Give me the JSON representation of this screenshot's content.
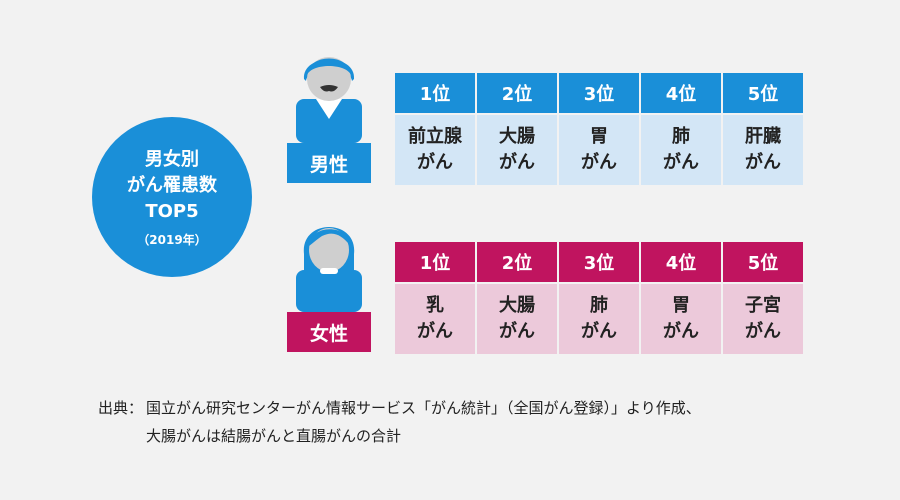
{
  "badge": {
    "line1": "男女別",
    "line2": "がん罹患数",
    "line3": "TOP5",
    "year": "（2019年）"
  },
  "male": {
    "label": "男性",
    "ranks": [
      {
        "rank": "1位",
        "site": "前立腺",
        "suffix": "がん"
      },
      {
        "rank": "2位",
        "site": "大腸",
        "suffix": "がん"
      },
      {
        "rank": "3位",
        "site": "胃",
        "suffix": "がん"
      },
      {
        "rank": "4位",
        "site": "肺",
        "suffix": "がん"
      },
      {
        "rank": "5位",
        "site": "肝臓",
        "suffix": "がん"
      }
    ]
  },
  "female": {
    "label": "女性",
    "ranks": [
      {
        "rank": "1位",
        "site": "乳",
        "suffix": "がん"
      },
      {
        "rank": "2位",
        "site": "大腸",
        "suffix": "がん"
      },
      {
        "rank": "3位",
        "site": "肺",
        "suffix": "がん"
      },
      {
        "rank": "4位",
        "site": "胃",
        "suffix": "がん"
      },
      {
        "rank": "5位",
        "site": "子宮",
        "suffix": "がん"
      }
    ]
  },
  "source": {
    "prefix": "出典：",
    "line1": "国立がん研究センターがん情報サービス「がん統計」（全国がん登録）」より作成、",
    "line2": "大腸がんは結腸がんと直腸がんの合計"
  },
  "colors": {
    "male": "#1a8fd8",
    "male_light": "#d3e6f6",
    "female": "#c0145f",
    "female_light": "#ecc9da"
  },
  "icons": [
    "male-person-icon",
    "female-person-icon"
  ]
}
